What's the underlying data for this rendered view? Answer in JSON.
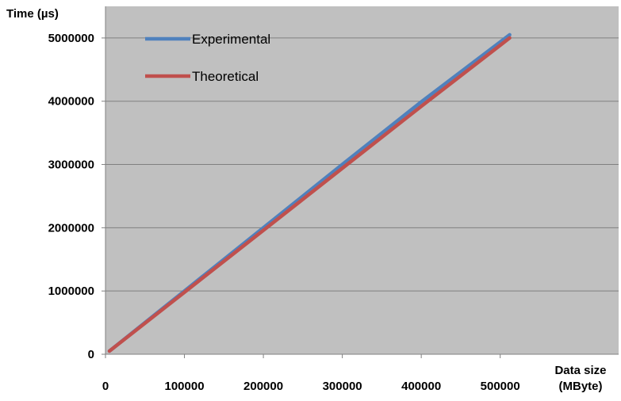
{
  "chart_data": {
    "type": "line",
    "xlabel_line1": "Data size",
    "xlabel_line2": "(MByte)",
    "ylabel": "Time (µs)",
    "xlim": [
      0,
      650000
    ],
    "ylim": [
      0,
      5500000
    ],
    "x_ticks": [
      "0",
      "100000",
      "200000",
      "300000",
      "400000",
      "500000"
    ],
    "x_tick_values": [
      0,
      100000,
      200000,
      300000,
      400000,
      500000
    ],
    "y_ticks": [
      "0",
      "1000000",
      "2000000",
      "3000000",
      "4000000",
      "5000000"
    ],
    "y_tick_values": [
      0,
      1000000,
      2000000,
      3000000,
      4000000,
      5000000
    ],
    "grid": "horizontal",
    "legend_position": "top-left",
    "plot_background": "#c0c0c0",
    "series": [
      {
        "name": "Experimental",
        "color": "#4f81bd",
        "x": [
          5000,
          100000,
          200000,
          300000,
          400000,
          512000
        ],
        "y": [
          50000,
          1000000,
          2000000,
          3000000,
          3990000,
          5050000
        ]
      },
      {
        "name": "Theoretical",
        "color": "#c0504d",
        "x": [
          5000,
          100000,
          200000,
          300000,
          400000,
          512000
        ],
        "y": [
          50000,
          980000,
          1960000,
          2940000,
          3920000,
          5000000
        ]
      }
    ]
  }
}
